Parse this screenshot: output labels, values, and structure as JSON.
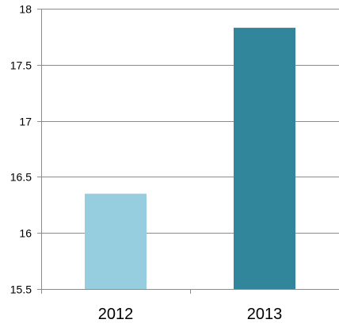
{
  "chart_data": {
    "type": "bar",
    "title": "",
    "xlabel": "",
    "ylabel": "",
    "categories": [
      "2012",
      "2013"
    ],
    "values": [
      16.35,
      17.83
    ],
    "ylim": [
      15.5,
      18
    ],
    "yticks": [
      "15.5",
      "16",
      "16.5",
      "17",
      "17.5",
      "18"
    ],
    "grid": true,
    "legend": "none",
    "colors": [
      "#96cddf",
      "#31869b"
    ],
    "gridline_color": "#8c8c8c",
    "axis_color": "#8c8c8c"
  }
}
